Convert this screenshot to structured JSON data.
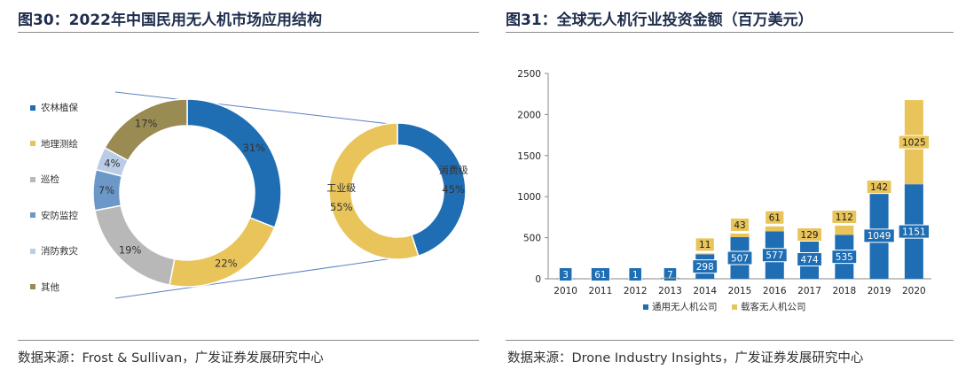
{
  "left": {
    "title": "图30：2022年中国民用无人机市场应用结构",
    "source": "数据来源：Frost & Sullivan，广发证券发展研究中心"
  },
  "right": {
    "title": "图31：全球无人机行业投资金额（百万美元）",
    "source": "数据来源：Drone Industry Insights，广发证券发展研究中心"
  },
  "chart_data": [
    {
      "type": "pie",
      "variant": "donut",
      "labels": [
        "农林植保",
        "地理测绘",
        "巡检",
        "安防监控",
        "消防救灾",
        "其他"
      ],
      "values": [
        31,
        22,
        19,
        7,
        4,
        17
      ],
      "value_labels": [
        "31%",
        "22%",
        "19%",
        "7%",
        "4%",
        "17%"
      ],
      "colors": [
        "#1f6eb4",
        "#e8c45a",
        "#b8b8b8",
        "#6c97c9",
        "#b9cde6",
        "#9a8b53"
      ],
      "legend_position": "left"
    },
    {
      "type": "pie",
      "variant": "donut",
      "labels": [
        "消费级",
        "工业级"
      ],
      "values": [
        45,
        55
      ],
      "value_labels": [
        "45%",
        "55%"
      ],
      "colors": [
        "#1f6eb4",
        "#e8c45a"
      ]
    },
    {
      "type": "bar",
      "stacked": true,
      "categories": [
        "2010",
        "2011",
        "2012",
        "2013",
        "2014",
        "2015",
        "2016",
        "2017",
        "2018",
        "2019",
        "2020"
      ],
      "series": [
        {
          "name": "通用无人机公司",
          "values": [
            3,
            61,
            1,
            7,
            298,
            507,
            577,
            474,
            535,
            1049,
            1151
          ],
          "labels": [
            "3",
            "61",
            "1",
            "7",
            "298",
            "507",
            "577",
            "474",
            "535",
            "1049",
            "1151"
          ],
          "color": "#1f6eb4"
        },
        {
          "name": "载客无人机公司",
          "values": [
            0,
            0,
            0,
            7,
            11,
            43,
            61,
            129,
            112,
            142,
            1025
          ],
          "labels": [
            "",
            "",
            "",
            "",
            "11",
            "43",
            "61",
            "129",
            "112",
            "142",
            "1025"
          ],
          "color": "#e8c45a"
        }
      ],
      "ylim": [
        0,
        2500
      ],
      "yticks": [
        0,
        500,
        1000,
        1500,
        2000,
        2500
      ],
      "legend_position": "bottom"
    }
  ]
}
